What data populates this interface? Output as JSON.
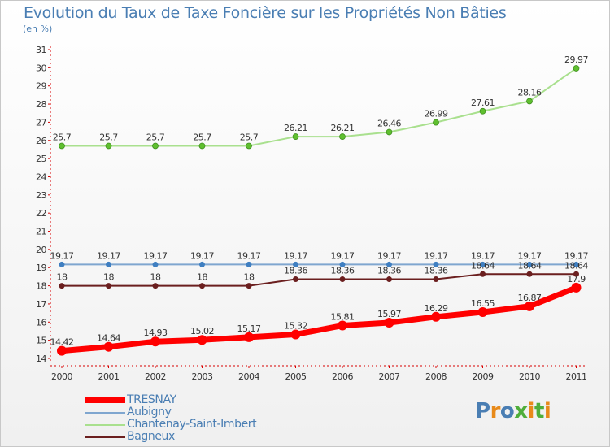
{
  "title": "Evolution du Taux de Taxe Foncière sur les Propriétés Non Bâties",
  "ylabel": "(en %)",
  "logo": {
    "text": "Proxiti",
    "colors": [
      "#4a7eb3",
      "#e88a1a",
      "#4a7eb3",
      "#4fae3a",
      "#e88a1a",
      "#4fae3a",
      "#e88a1a"
    ]
  },
  "chart_data": {
    "type": "line",
    "title": "Evolution du Taux de Taxe Foncière sur les Propriétés Non Bâties",
    "ylabel": "(en %)",
    "xlabel": "",
    "x": [
      "2000",
      "2001",
      "2002",
      "2003",
      "2004",
      "2005",
      "2006",
      "2007",
      "2008",
      "2009",
      "2010",
      "2011"
    ],
    "yticks": [
      "14",
      "15",
      "16",
      "17",
      "18",
      "19",
      "20",
      "21",
      "22",
      "23",
      "24",
      "25",
      "26",
      "27",
      "28",
      "29",
      "30",
      "31"
    ],
    "ylim": [
      14,
      31
    ],
    "grid": false,
    "legend_position": "bottom-left",
    "series": [
      {
        "name": "TRESNAY",
        "color": "#ff0000",
        "line_width": 7,
        "marker_radius": 6,
        "marker_color": "#ff0000",
        "values": [
          14.42,
          14.64,
          14.93,
          15.02,
          15.17,
          15.32,
          15.81,
          15.97,
          16.29,
          16.55,
          16.87,
          17.9
        ],
        "labels": [
          "14.42",
          "14.64",
          "14.93",
          "15.02",
          "15.17",
          "15.32",
          "15.81",
          "15.97",
          "16.29",
          "16.55",
          "16.87",
          "17.9"
        ]
      },
      {
        "name": "Aubigny",
        "color": "#7fa6cf",
        "line_width": 2,
        "marker_radius": 3.5,
        "marker_color": "#3f7fc1",
        "values": [
          19.17,
          19.17,
          19.17,
          19.17,
          19.17,
          19.17,
          19.17,
          19.17,
          19.17,
          19.17,
          19.17,
          19.17
        ],
        "labels": [
          "19.17",
          "19.17",
          "19.17",
          "19.17",
          "19.17",
          "19.17",
          "19.17",
          "19.17",
          "19.17",
          "19.17",
          "19.17",
          "19.17"
        ]
      },
      {
        "name": "Chantenay-Saint-Imbert",
        "color": "#a9e08e",
        "line_width": 2,
        "marker_radius": 3.5,
        "marker_color": "#5fbf2f",
        "values": [
          25.7,
          25.7,
          25.7,
          25.7,
          25.7,
          26.21,
          26.21,
          26.46,
          26.99,
          27.61,
          28.16,
          29.97
        ],
        "labels": [
          "25.7",
          "25.7",
          "25.7",
          "25.7",
          "25.7",
          "26.21",
          "26.21",
          "26.46",
          "26.99",
          "27.61",
          "28.16",
          "29.97"
        ]
      },
      {
        "name": "Bagneux",
        "color": "#6b1f1f",
        "line_width": 2,
        "marker_radius": 3.5,
        "marker_color": "#6b1f1f",
        "values": [
          18,
          18,
          18,
          18,
          18,
          18.36,
          18.36,
          18.36,
          18.36,
          18.64,
          18.64,
          18.64
        ],
        "labels": [
          "18",
          "18",
          "18",
          "18",
          "18",
          "18.36",
          "18.36",
          "18.36",
          "18.36",
          "18.64",
          "18.64",
          "18.64"
        ]
      }
    ]
  }
}
